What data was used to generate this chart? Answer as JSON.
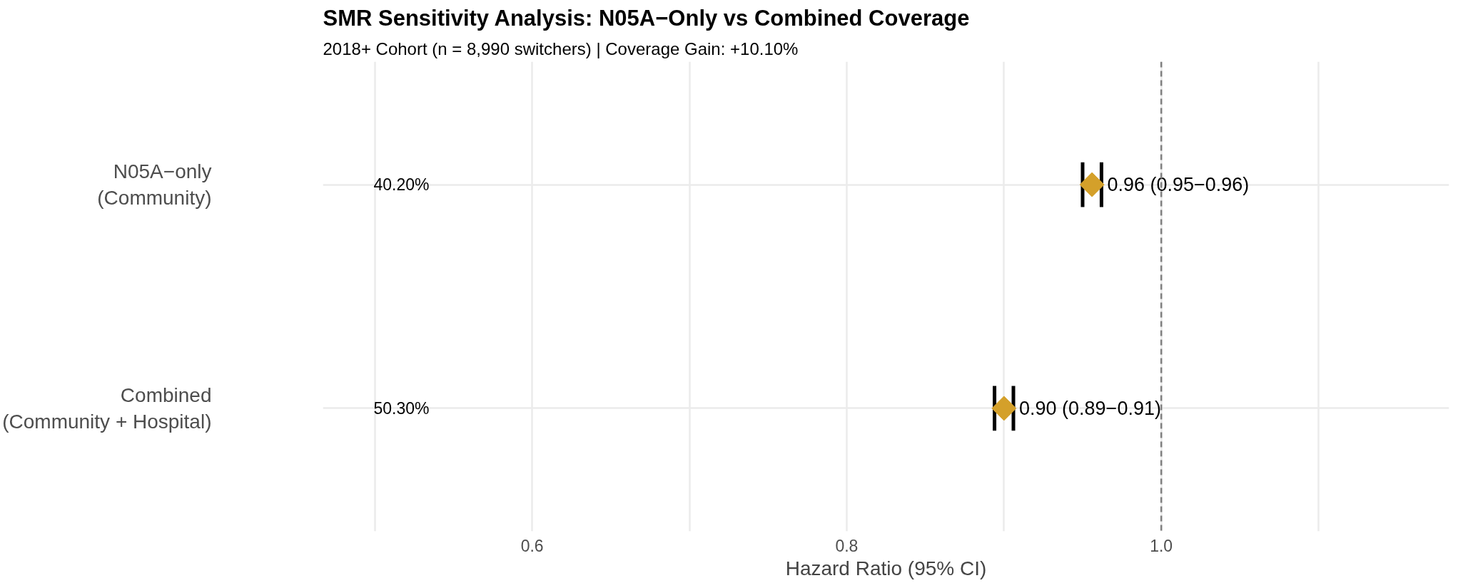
{
  "chart_data": {
    "type": "scatter",
    "orientation": "horizontal",
    "title": "SMR Sensitivity Analysis: N05A−Only vs Combined Coverage",
    "subtitle": "2018+ Cohort (n = 8,990 switchers) | Coverage Gain: +10.10%",
    "xlabel": "Hazard Ratio (95% CI)",
    "categories": [
      "N05A−only\n(Community)",
      "Combined\n(Community + Hospital)"
    ],
    "series": [
      {
        "color": "#d4a02a",
        "values": [
          0.956,
          0.9
        ],
        "errors": [
          0.006,
          0.006
        ],
        "value_labels": [
          "0.96 (0.95−0.96)",
          "0.90 (0.89−0.91)"
        ]
      }
    ],
    "marker": "diamond",
    "xlim": [
      0.467,
      1.183
    ],
    "xticks": [
      {
        "value": 0.5,
        "label": null
      },
      0.6,
      {
        "value": 0.7,
        "label": null
      },
      0.8,
      {
        "value": 0.9,
        "label": null
      },
      {
        "value": 1.0,
        "label": "1.0"
      },
      {
        "value": 1.1,
        "label": null
      }
    ],
    "ref_lines": [
      {
        "axis": "x",
        "value": 1.0,
        "color": "#808080",
        "line_style": "dashed"
      }
    ],
    "annotations": [
      "40.20%",
      "50.30%"
    ],
    "grid": true
  }
}
